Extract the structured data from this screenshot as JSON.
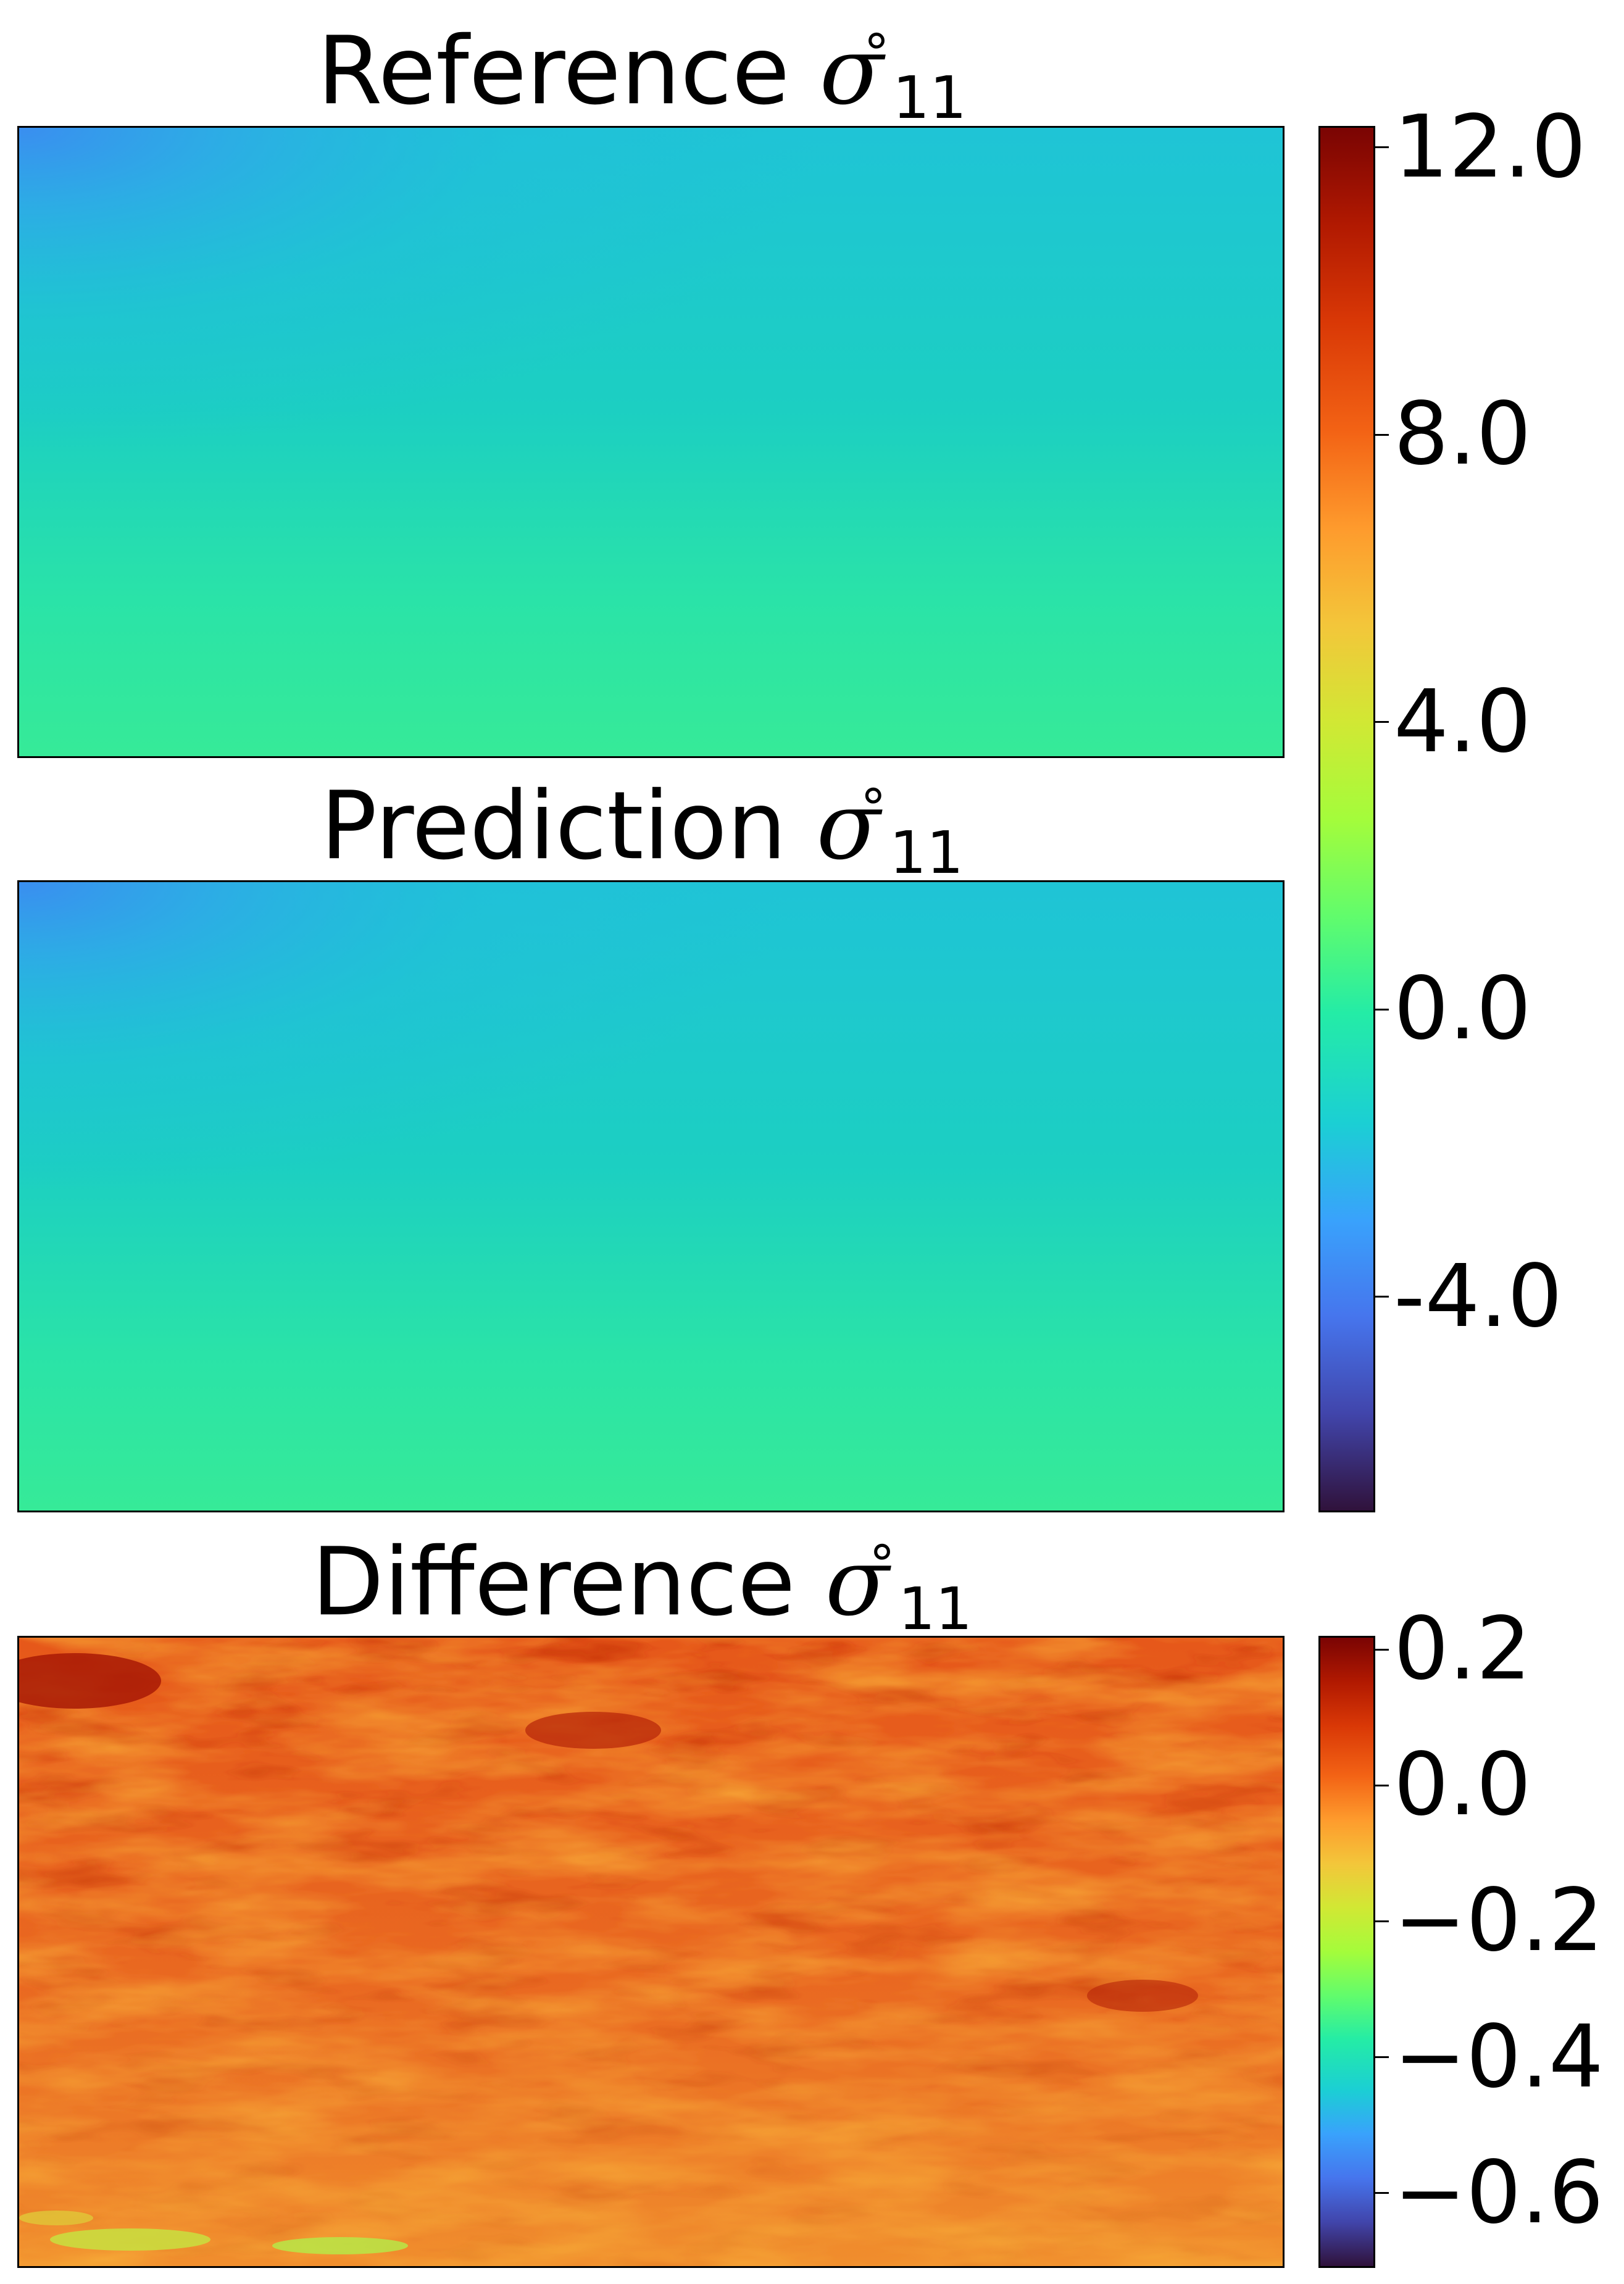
{
  "chart_data": [
    {
      "type": "heatmap",
      "title_text": "Reference ",
      "title_symbol": "σ",
      "title_sup": "∘",
      "title_sub": "11",
      "colormap": "turbo",
      "colorbar_group": "shared"
    },
    {
      "type": "heatmap",
      "title_text": "Prediction ",
      "title_symbol": "σ",
      "title_sup": "∘",
      "title_sub": "11",
      "colormap": "turbo",
      "colorbar_group": "shared"
    },
    {
      "type": "heatmap",
      "title_text": "Difference ",
      "title_symbol": "σ",
      "title_sup": "∘",
      "title_sub": "11",
      "colormap": "turbo",
      "colorbar_group": "difference"
    }
  ],
  "colorbars": {
    "shared": {
      "range": [
        -7.0,
        12.3
      ],
      "ticks": [
        {
          "value": 12.0,
          "label": "12.0"
        },
        {
          "value": 8.0,
          "label": "8.0"
        },
        {
          "value": 4.0,
          "label": "4.0"
        },
        {
          "value": 0.0,
          "label": "0.0"
        },
        {
          "value": -4.0,
          "label": "-4.0"
        }
      ]
    },
    "difference": {
      "range": [
        -0.71,
        0.22
      ],
      "ticks": [
        {
          "value": 0.2,
          "label": "0.2"
        },
        {
          "value": 0.0,
          "label": "0.0"
        },
        {
          "value": -0.2,
          "label": "−0.2"
        },
        {
          "value": -0.4,
          "label": "−0.4"
        },
        {
          "value": -0.6,
          "label": "−0.6"
        }
      ]
    }
  }
}
